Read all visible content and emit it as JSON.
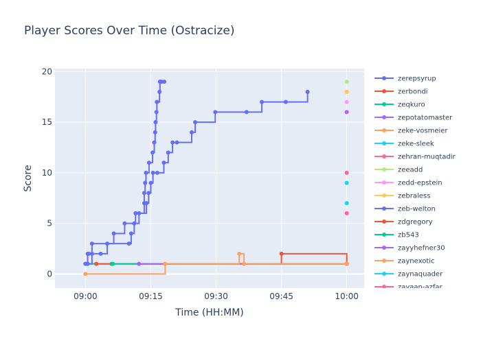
{
  "chart_data": {
    "type": "line",
    "line_shape": "step",
    "title": "Player Scores Over Time (Ostracize)",
    "xlabel": "Time (HH:MM)",
    "ylabel": "Score",
    "x_ticks": [
      "09:00",
      "09:15",
      "09:30",
      "09:45",
      "10:00"
    ],
    "y_ticks": [
      "0",
      "5",
      "10",
      "15",
      "20"
    ],
    "xlim_minutes": [
      -7,
      64
    ],
    "ylim": [
      -1.4,
      20.3
    ],
    "grid": true,
    "legend_position": "right",
    "series": [
      {
        "name": "zerepsyrup",
        "color": "#636efa",
        "x": [
          0,
          0.5,
          0.75,
          1.5,
          6.5,
          9.0,
          11.5,
          13.5,
          13.5,
          13.7,
          13.9,
          14.6,
          15.4,
          15.8,
          16.0,
          16.1,
          16.3,
          16.4,
          17.0,
          17.1,
          17.2,
          17.5,
          18.1
        ],
        "y": [
          1,
          2,
          2,
          3,
          4,
          5,
          6,
          7,
          8,
          9,
          10,
          11,
          12,
          13,
          14,
          15,
          16,
          17,
          18,
          19,
          19,
          19,
          19
        ]
      },
      {
        "name": "zerbondi",
        "color": "#ef553b",
        "x": [
          0.5,
          60
        ],
        "y": [
          1,
          1
        ]
      },
      {
        "name": "zeqkuro",
        "color": "#00cc96",
        "x": [
          0.5,
          6,
          60
        ],
        "y": [
          1,
          1,
          1
        ]
      },
      {
        "name": "zepotatomaster",
        "color": "#ab63fa",
        "x": [
          60
        ],
        "y": [
          16
        ]
      },
      {
        "name": "zeke-vosmeier",
        "color": "#ffa15a",
        "x": [
          60
        ],
        "y": [
          18
        ]
      },
      {
        "name": "zeke-sleek",
        "color": "#19d3f3",
        "x": [
          60
        ],
        "y": [
          7
        ]
      },
      {
        "name": "zehran-muqtadir",
        "color": "#ff6692",
        "x": [
          60
        ],
        "y": [
          6
        ]
      },
      {
        "name": "zeeadd",
        "color": "#b6e880",
        "x": [
          60
        ],
        "y": [
          19
        ]
      },
      {
        "name": "zedd-epstein",
        "color": "#ff97ff",
        "x": [
          60
        ],
        "y": [
          17
        ]
      },
      {
        "name": "zebraless",
        "color": "#fecb52",
        "x": [
          60
        ],
        "y": [
          18
        ]
      },
      {
        "name": "zeb-welton",
        "color": "#636efa",
        "x": [
          0,
          0.5,
          1.5,
          3.5,
          5,
          10,
          10.5,
          11.2,
          12.3,
          14,
          14.5,
          15,
          15.5,
          16.5,
          18,
          19,
          20,
          21,
          24.4,
          25.2,
          29.8,
          37,
          40.5,
          46,
          51
        ],
        "y": [
          1,
          1,
          2,
          2,
          3,
          3,
          4,
          5,
          6,
          7,
          8,
          9,
          10,
          10,
          11,
          12,
          13,
          13,
          14,
          15,
          16,
          16,
          17,
          17,
          18
        ]
      },
      {
        "name": "zdgregory",
        "color": "#ef553b",
        "x": [
          2.5,
          45,
          60
        ],
        "y": [
          1,
          2,
          1
        ]
      },
      {
        "name": "zb543",
        "color": "#00cc96",
        "x": [
          6.3,
          60
        ],
        "y": [
          1,
          1
        ]
      },
      {
        "name": "zayyhefner30",
        "color": "#ab63fa",
        "x": [
          12.3,
          60
        ],
        "y": [
          1,
          1
        ]
      },
      {
        "name": "zaynexotic",
        "color": "#ffa15a",
        "x": [
          0,
          18.3,
          35.3,
          36.4,
          60
        ],
        "y": [
          0,
          1,
          2,
          1,
          1
        ]
      },
      {
        "name": "zaynaquader",
        "color": "#19d3f3",
        "x": [
          60
        ],
        "y": [
          9
        ]
      },
      {
        "name": "zayaan-azfar",
        "color": "#ff6692",
        "x": [
          60
        ],
        "y": [
          10
        ]
      }
    ],
    "visible_legend_entries": [
      "zerepsyrup",
      "zerbondi",
      "zeqkuro",
      "zepotatomaster",
      "zeke-vosmeier",
      "zeke-sleek",
      "zehran-muqtadir",
      "zeeadd",
      "zedd-epstein",
      "zebraless",
      "zeb-welton",
      "zdgregory",
      "zb543",
      "zayyhefner30",
      "zaynexotic",
      "zaynaquader",
      "zayaan-azfar"
    ]
  }
}
